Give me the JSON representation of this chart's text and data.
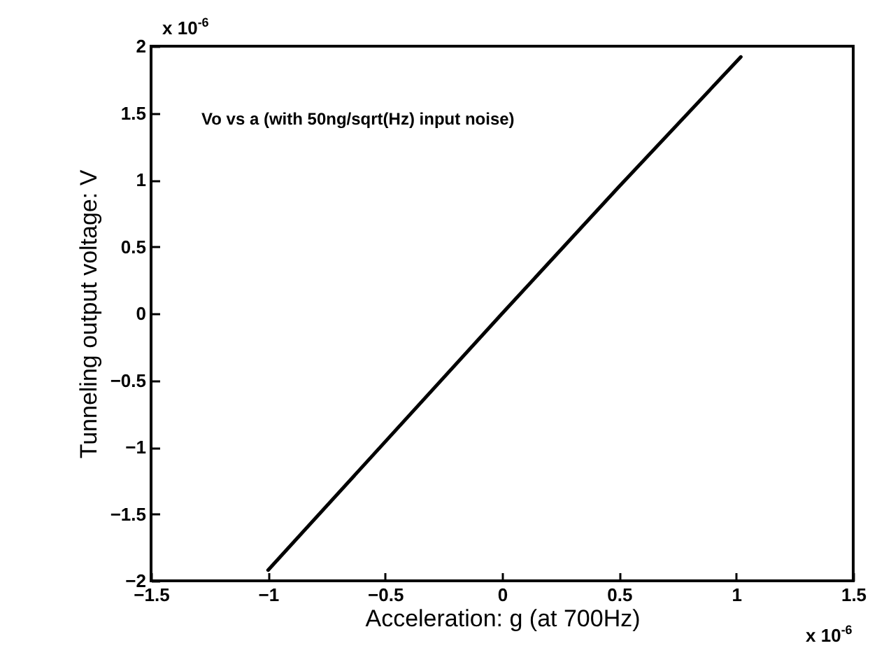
{
  "chart_data": {
    "type": "line",
    "xlabel": "Acceleration: g (at 700Hz)",
    "ylabel": "Tunneling output voltage: V",
    "annotations": [
      "Vo vs a (with 50ng/sqrt(Hz) input noise)",
      "x 10$^{-6}$",
      "x 10$^{-6}$"
    ],
    "x": [
      -1,
      -0.5,
      0,
      0.5,
      1.02
    ],
    "series": [
      {
        "color": "#000000",
        "values": [
          -1.92,
          -0.96,
          0,
          0.95,
          1.92
        ]
      }
    ],
    "xlim": [
      -1.5,
      1.5
    ],
    "xticks": [
      -1.5,
      -1,
      -0.5,
      0,
      0.5,
      1,
      1.5
    ],
    "ylim": [
      -2,
      2
    ],
    "yticks": [
      -2,
      -1.5,
      -1,
      -0.5,
      0,
      0.5,
      1,
      1.5,
      2
    ],
    "grid": false,
    "marker": "none",
    "line_style": "solid"
  }
}
